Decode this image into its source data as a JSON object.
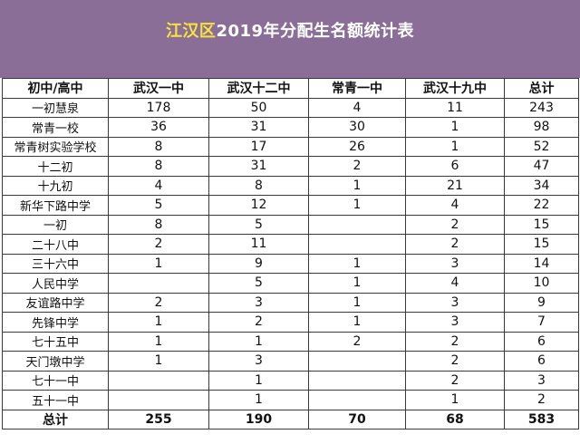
{
  "title": {
    "highlight": "江汉区",
    "rest": "2019年分配生名额统计表"
  },
  "table": {
    "headers": [
      "初中/高中",
      "武汉一中",
      "武汉十二中",
      "常青一中",
      "武汉十九中",
      "总计"
    ],
    "rows": [
      [
        "一初慧泉",
        "178",
        "50",
        "4",
        "11",
        "243"
      ],
      [
        "常青一校",
        "36",
        "31",
        "30",
        "1",
        "98"
      ],
      [
        "常青树实验学校",
        "8",
        "17",
        "26",
        "1",
        "52"
      ],
      [
        "十二初",
        "8",
        "31",
        "2",
        "6",
        "47"
      ],
      [
        "十九初",
        "4",
        "8",
        "1",
        "21",
        "34"
      ],
      [
        "新华下路中学",
        "5",
        "12",
        "1",
        "4",
        "22"
      ],
      [
        "一初",
        "8",
        "5",
        "",
        "2",
        "15"
      ],
      [
        "二十八中",
        "2",
        "11",
        "",
        "2",
        "15"
      ],
      [
        "三十六中",
        "1",
        "9",
        "1",
        "3",
        "14"
      ],
      [
        "人民中学",
        "",
        "5",
        "1",
        "4",
        "10"
      ],
      [
        "友谊路中学",
        "2",
        "3",
        "1",
        "3",
        "9"
      ],
      [
        "先锋中学",
        "1",
        "2",
        "1",
        "3",
        "7"
      ],
      [
        "七十五中",
        "1",
        "1",
        "2",
        "2",
        "6"
      ],
      [
        "天门墩中学",
        "1",
        "3",
        "",
        "2",
        "6"
      ],
      [
        "七十一中",
        "",
        "1",
        "",
        "2",
        "3"
      ],
      [
        "五十一中",
        "",
        "1",
        "",
        "1",
        "2"
      ]
    ],
    "total": [
      "总计",
      "255",
      "190",
      "70",
      "68",
      "583"
    ]
  }
}
